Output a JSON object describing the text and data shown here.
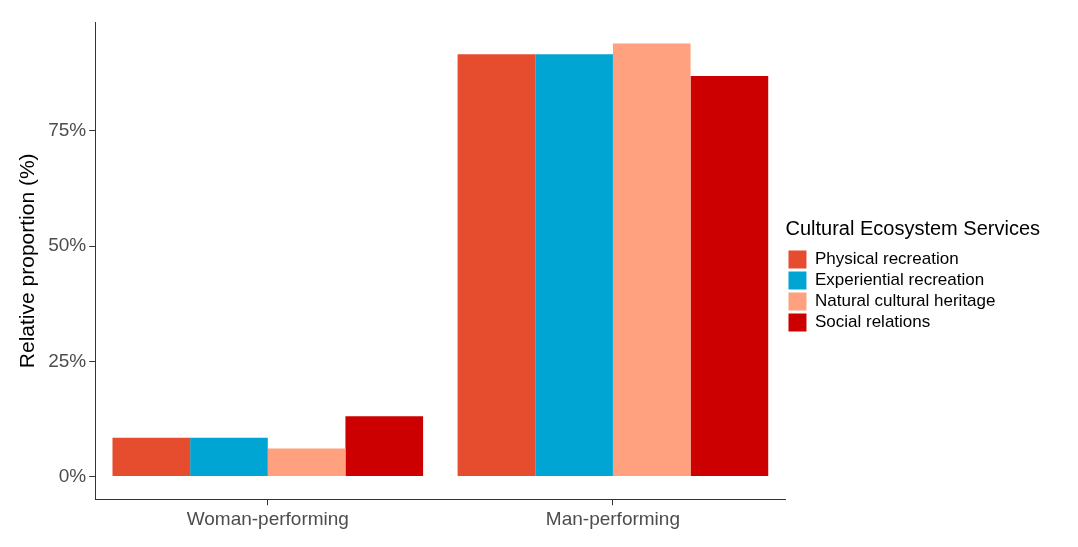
{
  "chart_data": {
    "type": "bar",
    "ylabel": "Relative proportion (%)",
    "legend_title": "Cultural Ecosystem Services",
    "categories": [
      "Woman-performing",
      "Man-performing"
    ],
    "series": [
      {
        "name": "Physical recreation",
        "color": "#e64d2e",
        "values": [
          8.4,
          91.6
        ]
      },
      {
        "name": "Experiential recreation",
        "color": "#00a5d4",
        "values": [
          8.4,
          91.6
        ]
      },
      {
        "name": "Natural cultural heritage",
        "color": "#ffa07f",
        "values": [
          6.1,
          93.9
        ]
      },
      {
        "name": "Social relations",
        "color": "#cc0000",
        "values": [
          13.1,
          86.9
        ]
      }
    ],
    "ylim": [
      -4.9,
      98.5
    ],
    "yticks": [
      {
        "value": 0,
        "label": "0%"
      },
      {
        "value": 25,
        "label": "25%"
      },
      {
        "value": 50,
        "label": "50%"
      },
      {
        "value": 75,
        "label": "75%"
      }
    ],
    "grid": false,
    "legend": "right"
  }
}
